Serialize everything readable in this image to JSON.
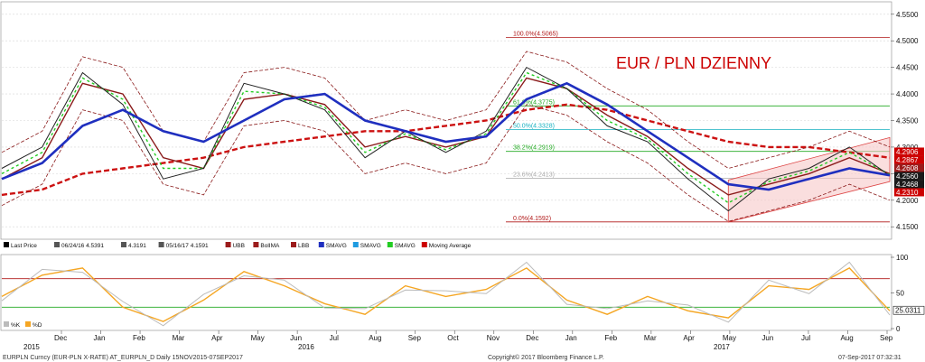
{
  "chart_data": {
    "type": "line",
    "title": "EUR / PLN DZIENNY",
    "title_color": "#cc0000",
    "main_panel": {
      "ylim": [
        4.13,
        4.57
      ],
      "yticks": [
        "4.5500",
        "4.5000",
        "4.4500",
        "4.4000",
        "4.3500",
        "4.3000",
        "4.2500",
        "4.2000",
        "4.1500"
      ],
      "price_series_x": [
        "Nov 2015",
        "Dec 2015",
        "Jan 2016",
        "Feb",
        "Mar",
        "Apr",
        "May",
        "Jun",
        "Jul",
        "Aug",
        "Sep",
        "Oct",
        "Nov",
        "Dec",
        "Jan 2017",
        "Feb",
        "Mar",
        "Apr",
        "May",
        "Jun",
        "Jul",
        "Aug",
        "Sep"
      ],
      "price_series": [
        4.26,
        4.3,
        4.44,
        4.38,
        4.24,
        4.26,
        4.42,
        4.4,
        4.37,
        4.28,
        4.33,
        4.29,
        4.33,
        4.45,
        4.41,
        4.34,
        4.31,
        4.24,
        4.18,
        4.24,
        4.26,
        4.3,
        4.246
      ],
      "sma_blue": [
        4.24,
        4.27,
        4.34,
        4.37,
        4.33,
        4.31,
        4.35,
        4.39,
        4.4,
        4.35,
        4.33,
        4.31,
        4.32,
        4.39,
        4.42,
        4.38,
        4.33,
        4.28,
        4.23,
        4.22,
        4.24,
        4.26,
        4.2468
      ],
      "sma_darkred_mid": [
        4.24,
        4.28,
        4.42,
        4.4,
        4.28,
        4.26,
        4.39,
        4.4,
        4.38,
        4.3,
        4.32,
        4.3,
        4.32,
        4.43,
        4.41,
        4.36,
        4.32,
        4.26,
        4.21,
        4.23,
        4.25,
        4.28,
        4.25
      ],
      "ma_dashed_red": [
        4.21,
        4.22,
        4.25,
        4.26,
        4.27,
        4.28,
        4.3,
        4.31,
        4.32,
        4.33,
        4.33,
        4.34,
        4.35,
        4.37,
        4.38,
        4.37,
        4.35,
        4.33,
        4.31,
        4.3,
        4.3,
        4.29,
        4.28
      ],
      "fib_levels": [
        {
          "label": "100.0%(4.5065)",
          "value": 4.5065
        },
        {
          "label": "61.8%(4.3775)",
          "value": 4.3775
        },
        {
          "label": "50.0%(4.3328)",
          "value": 4.3328
        },
        {
          "label": "38.2%(4.2919)",
          "value": 4.2919
        },
        {
          "label": "23.6%(4.2413)",
          "value": 4.2413
        },
        {
          "label": "0.0%(4.1592)",
          "value": 4.1592
        }
      ],
      "price_tags": [
        {
          "text": "4.2906",
          "color": "#cc0000",
          "value": 4.2906
        },
        {
          "text": "4.2867",
          "color": "#cc0000",
          "value": 4.2867
        },
        {
          "text": "4.2608",
          "color": "#9b1b1b",
          "value": 4.2608
        },
        {
          "text": "4.2560",
          "color": "#1a1a1a",
          "value": 4.256
        },
        {
          "text": "4.2468",
          "color": "#1a1a1a",
          "value": 4.2468
        },
        {
          "text": "4.2310",
          "color": "#cc0000",
          "value": 4.231
        }
      ],
      "legend": [
        {
          "label": "Last Price",
          "color": "#000000"
        },
        {
          "label": "06/24/16 4.5391",
          "color": "#555555"
        },
        {
          "label": "4.3191",
          "color": "#555555"
        },
        {
          "label": "05/16/17 4.1591",
          "color": "#555555"
        },
        {
          "label": "UBB",
          "color": "#9b1b1b"
        },
        {
          "label": "BolIMA",
          "color": "#9b1b1b"
        },
        {
          "label": "LBB",
          "color": "#9b1b1b"
        },
        {
          "label": "SMAVG",
          "color": "#1f2fbf"
        },
        {
          "label": "SMAVG",
          "color": "#1e9be0"
        },
        {
          "label": "SMAVG",
          "color": "#22cc22"
        },
        {
          "label": "Moving Average",
          "color": "#cc0000"
        }
      ]
    },
    "lower_panel": {
      "ylim": [
        0,
        100
      ],
      "yticks": [
        "100",
        "50",
        "0"
      ],
      "hlines": [
        70,
        30
      ],
      "last_value_tag": "25.0311",
      "legend": [
        {
          "label": "%K",
          "color": "#bbbbbb"
        },
        {
          "label": "%D",
          "color": "#f5a623"
        }
      ],
      "stoch_x": [
        "Nov 2015",
        "Dec 2015",
        "Jan 2016",
        "Feb",
        "Mar",
        "Apr",
        "May",
        "Jun",
        "Jul",
        "Aug",
        "Sep",
        "Oct",
        "Nov",
        "Dec",
        "Jan 2017",
        "Feb",
        "Mar",
        "Apr",
        "May",
        "Jun",
        "Jul",
        "Aug",
        "Sep"
      ],
      "stoch_d": [
        45,
        75,
        85,
        30,
        10,
        40,
        80,
        60,
        35,
        20,
        60,
        45,
        55,
        85,
        40,
        20,
        45,
        25,
        15,
        60,
        55,
        85,
        25
      ]
    },
    "x_axis": {
      "months": [
        "Dec",
        "Jan",
        "Feb",
        "Mar",
        "Apr",
        "May",
        "Jun",
        "Jul",
        "Aug",
        "Sep",
        "Oct",
        "Nov",
        "Dec",
        "Jan",
        "Feb",
        "Mar",
        "Apr",
        "May",
        "Jun",
        "Jul",
        "Aug",
        "Sep"
      ],
      "years": [
        "2015",
        "2016",
        "2017"
      ]
    }
  },
  "footer": {
    "left": "EURPLN Curncy (EUR-PLN X-RATE) AT_EURPLN_D  Daily 15NOV2015-07SEP2017",
    "center": "Copyright© 2017 Bloomberg Finance L.P.",
    "right": "07-Sep-2017 07:32:31"
  }
}
